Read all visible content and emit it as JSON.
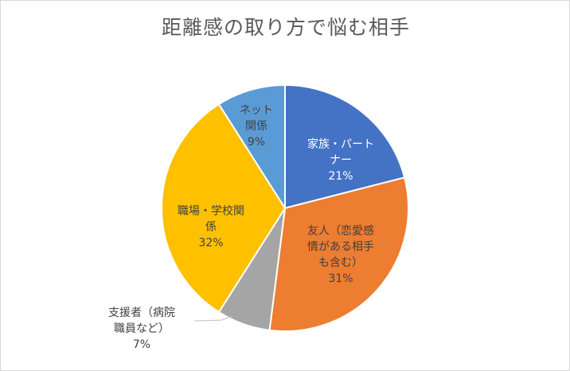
{
  "chart_data": {
    "type": "pie",
    "title": "距離感の取り方で悩む相手",
    "slices": [
      {
        "lines": [
          "家族・パート",
          "ナー"
        ],
        "value": 21,
        "pct": "21%",
        "color": "#4472c4",
        "text_color": "#ffffff"
      },
      {
        "lines": [
          "友人（恋愛感",
          "情がある相手",
          "も含む）"
        ],
        "value": 31,
        "pct": "31%",
        "color": "#ed7d31",
        "text_color": "#404040"
      },
      {
        "lines": [
          "支援者（病院",
          "職員など）"
        ],
        "value": 7,
        "pct": "7%",
        "color": "#a5a5a5",
        "text_color": "#404040"
      },
      {
        "lines": [
          "職場・学校関",
          "係"
        ],
        "value": 32,
        "pct": "32%",
        "color": "#ffc000",
        "text_color": "#404040"
      },
      {
        "lines": [
          "ネット",
          "関係"
        ],
        "value": 9,
        "pct": "9%",
        "color": "#5b9bd5",
        "text_color": "#404040"
      }
    ]
  }
}
